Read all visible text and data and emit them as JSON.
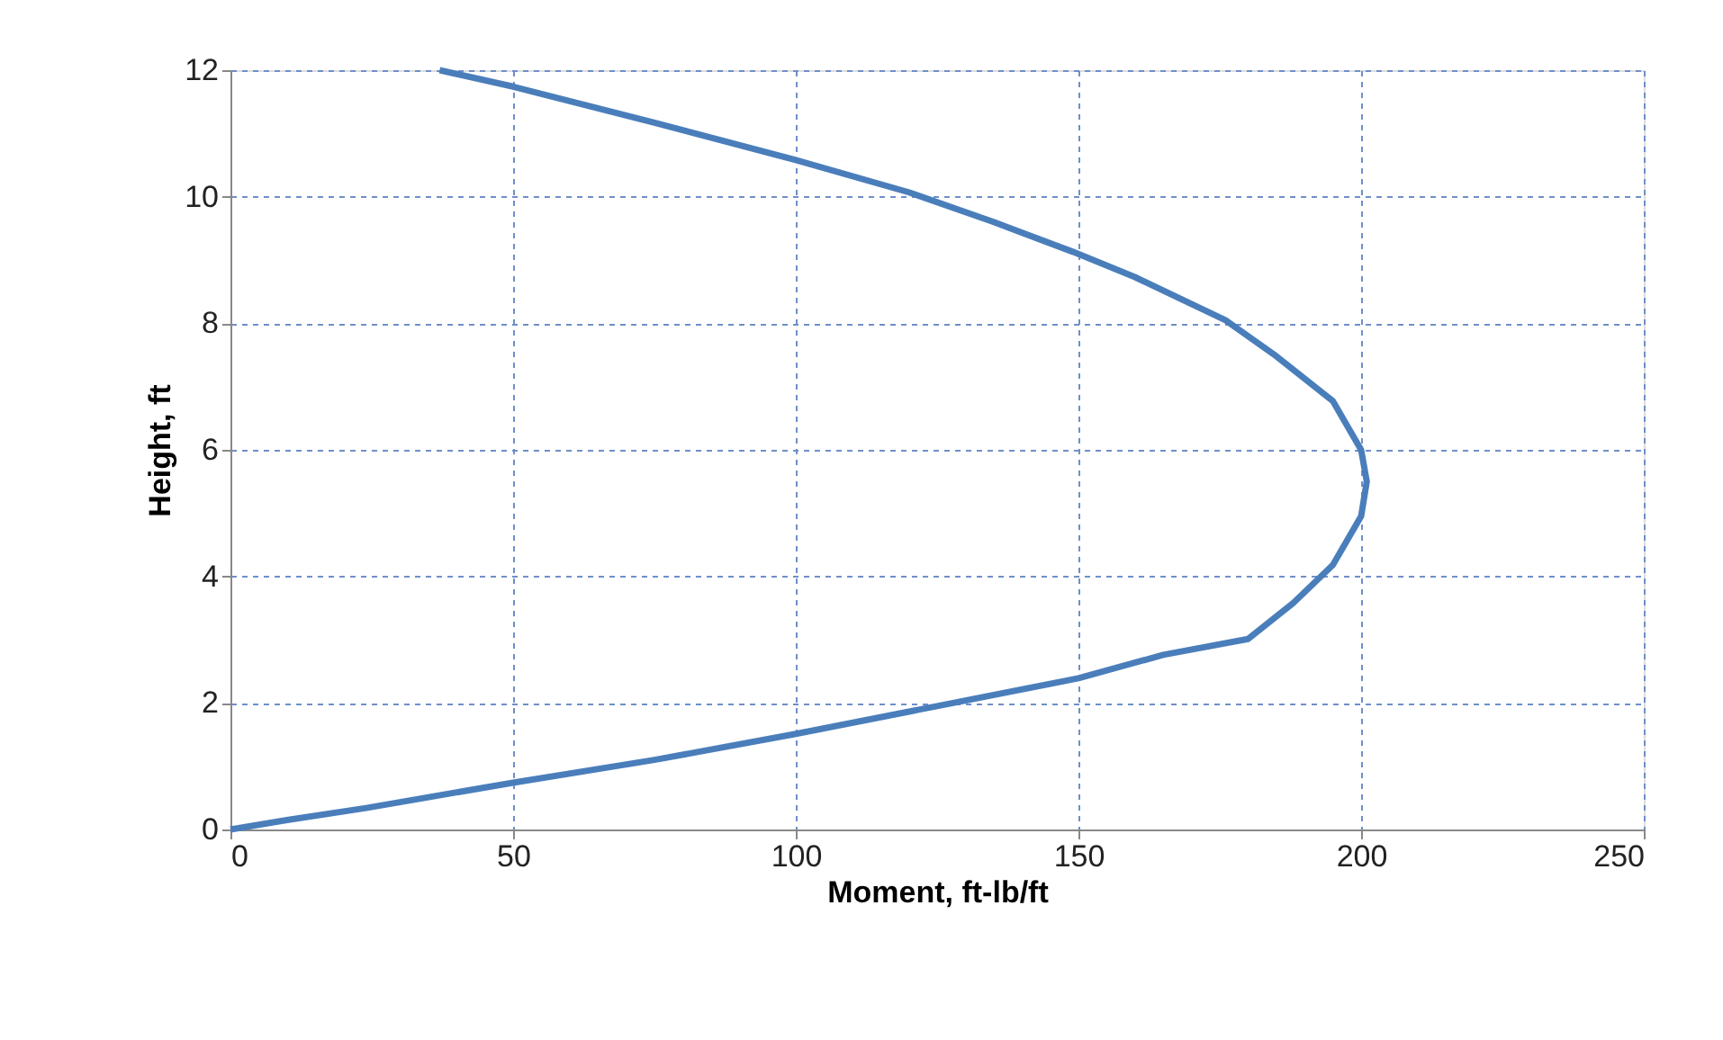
{
  "chart_data": {
    "type": "line",
    "xlabel": "Moment, ft-lb/ft",
    "ylabel": "Height, ft",
    "series": [
      {
        "color": "#4a7ebb",
        "x": [
          0,
          10,
          24,
          50,
          75,
          100,
          125,
          150,
          165,
          180,
          188,
          195,
          200,
          201,
          200,
          195,
          185,
          176,
          160,
          149,
          135,
          120,
          100,
          75,
          50,
          37
        ],
        "values": [
          0,
          0.15,
          0.34,
          0.74,
          1.1,
          1.51,
          1.95,
          2.39,
          2.76,
          3.01,
          3.58,
          4.18,
          4.95,
          5.5,
          6.0,
          6.77,
          7.48,
          8.05,
          8.73,
          9.13,
          9.6,
          10.07,
          10.58,
          11.17,
          11.74,
          12
        ]
      }
    ],
    "xlim": [
      0,
      250
    ],
    "xticks": [
      0,
      50,
      100,
      150,
      200,
      250
    ],
    "ylim": [
      0,
      12
    ],
    "yticks": [
      0,
      2,
      4,
      6,
      8,
      10,
      12
    ],
    "grid": true,
    "line_style": "solid",
    "marker": "none"
  }
}
